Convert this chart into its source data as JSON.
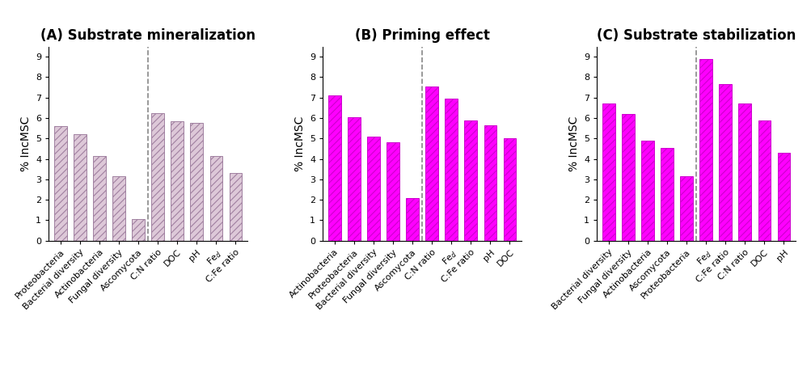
{
  "panels": [
    {
      "title": "(A) Substrate mineralization",
      "categories": [
        "Proteobacteria",
        "Bacterial diversity",
        "Actinobacteria",
        "Fungal diversity",
        "Ascomycota",
        "C:N ratio",
        "DOC",
        "pH",
        "Feₓ",
        "C:Fe ratio"
      ],
      "values": [
        5.6,
        5.2,
        4.15,
        3.15,
        1.05,
        6.25,
        5.85,
        5.75,
        4.15,
        3.3
      ],
      "dashed_after": 4,
      "bar_facecolor": "#ddc8d8",
      "bar_edgecolor": "#a080a0",
      "hatch": "////",
      "hatch_color": "#b898b0"
    },
    {
      "title": "(B) Priming effect",
      "categories": [
        "Actinobacteria",
        "Proteobacteria",
        "Bacterial diversity",
        "Fungal diversity",
        "Ascomycota",
        "C:N ratio",
        "Feₓ",
        "C:Fe ratio",
        "pH",
        "DOC"
      ],
      "values": [
        7.1,
        6.05,
        5.1,
        4.8,
        2.1,
        7.55,
        6.95,
        5.9,
        5.65,
        5.0
      ],
      "dashed_after": 4,
      "bar_facecolor": "#ff00ff",
      "bar_edgecolor": "#cc00cc",
      "hatch": "////",
      "hatch_color": "#aa00aa"
    },
    {
      "title": "(C) Substrate stabilization",
      "categories": [
        "Bacterial diversity",
        "Fungal diversity",
        "Actinobacteria",
        "Ascomycota",
        "Proteobacteria",
        "Feₓ",
        "C:Fe ratio",
        "C:N ratio",
        "DOC",
        "pH"
      ],
      "values": [
        6.7,
        6.2,
        4.9,
        4.55,
        3.15,
        8.9,
        7.65,
        6.7,
        5.9,
        4.3
      ],
      "dashed_after": 4,
      "bar_facecolor": "#ff00ff",
      "bar_edgecolor": "#cc00cc",
      "hatch": "////",
      "hatch_color": "#aa00aa"
    }
  ],
  "ylabel": "% IncMSC",
  "ylim": [
    0,
    9.5
  ],
  "yticks": [
    0,
    1,
    2,
    3,
    4,
    5,
    6,
    7,
    8,
    9
  ],
  "background_color": "#ffffff",
  "title_fontsize": 12,
  "tick_fontsize": 8,
  "ylabel_fontsize": 10,
  "bar_width": 0.65
}
